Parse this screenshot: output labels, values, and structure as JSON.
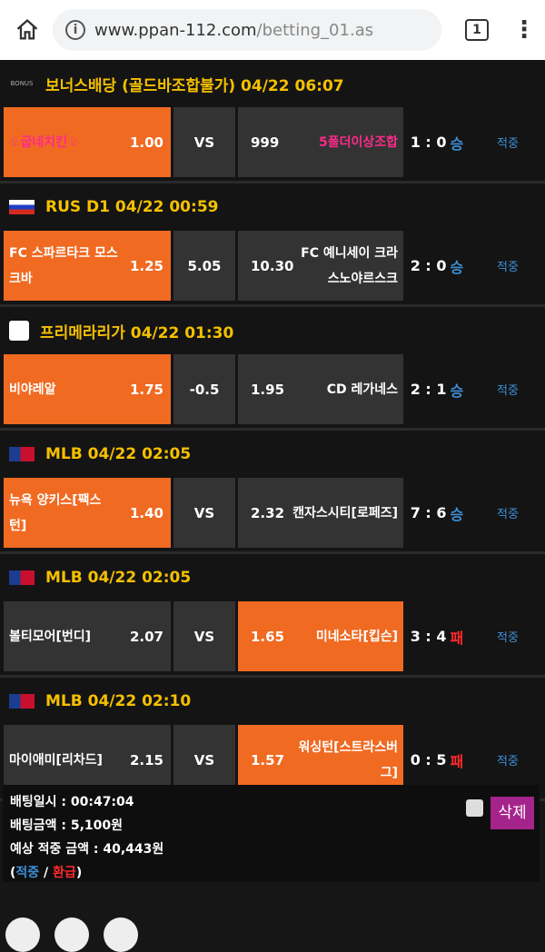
{
  "browser": {
    "url_host": "www.ppan-112.com",
    "url_path": "/betting_01.as",
    "tab_count": "1"
  },
  "games": [
    {
      "flag": "BONUS",
      "title": "보너스배당 (골드바조합불가) 04/22 06:07",
      "home": {
        "name": "♧굽네치킨♧",
        "odds": "1.00",
        "selected": true,
        "pink": true
      },
      "mid": "VS",
      "away": {
        "name": "5폴더이상조합",
        "odds": "999",
        "selected": false,
        "pink": true
      },
      "score": "1 : 0",
      "result": "승",
      "status": "적중"
    },
    {
      "flag": "RU",
      "title": "RUS D1 04/22 00:59",
      "home": {
        "name": "FC 스파르타크 모스크바",
        "odds": "1.25",
        "selected": true
      },
      "mid": "5.05",
      "away": {
        "name": "FC 예니세이 크라스노야르스크",
        "odds": "10.30",
        "selected": false
      },
      "score": "2 : 0",
      "result": "승",
      "status": "적중"
    },
    {
      "flag": "LL",
      "title": "프리메라리가 04/22 01:30",
      "home": {
        "name": "비야레알",
        "odds": "1.75",
        "selected": true
      },
      "mid": "-0.5",
      "away": {
        "name": "CD 레가네스",
        "odds": "1.95",
        "selected": false
      },
      "score": "2 : 1",
      "result": "승",
      "status": "적중"
    },
    {
      "flag": "MLB",
      "title": "MLB 04/22 02:05",
      "home": {
        "name": "뉴욕 양키스[팩스턴]",
        "odds": "1.40",
        "selected": true
      },
      "mid": "VS",
      "away": {
        "name": "캔자스시티[로페즈]",
        "odds": "2.32",
        "selected": false
      },
      "score": "7 : 6",
      "result": "승",
      "status": "적중"
    },
    {
      "flag": "MLB",
      "title": "MLB 04/22 02:05",
      "home": {
        "name": "볼티모어[번디]",
        "odds": "2.07",
        "selected": false
      },
      "mid": "VS",
      "away": {
        "name": "미네소타[킵슨]",
        "odds": "1.65",
        "selected": true
      },
      "score": "3 : 4",
      "result": "패",
      "status": "적중"
    },
    {
      "flag": "MLB",
      "title": "MLB 04/22 02:10",
      "home": {
        "name": "마이애미[리차드]",
        "odds": "2.15",
        "selected": false
      },
      "mid": "VS",
      "away": {
        "name": "워싱턴[스트라스버그]",
        "odds": "1.57",
        "selected": true
      },
      "score": "0 : 5",
      "result": "패",
      "status": "적중"
    }
  ],
  "footer": {
    "bet_time": "배팅일시 : 00:47:04",
    "bet_amount": "배팅금액 : 5,100원",
    "expected": "예상 적중 금액 : 40,443원",
    "legend_open": "(",
    "legend_hit": "적중",
    "legend_sep": " / ",
    "legend_refund": "환급",
    "legend_close": ")",
    "delete_label": "삭제"
  },
  "colors": {
    "selected": "#f06a22",
    "title": "#f5c000",
    "win": "#3d8fd6",
    "lose": "#ff2a2a",
    "delete": "#a4248c"
  }
}
